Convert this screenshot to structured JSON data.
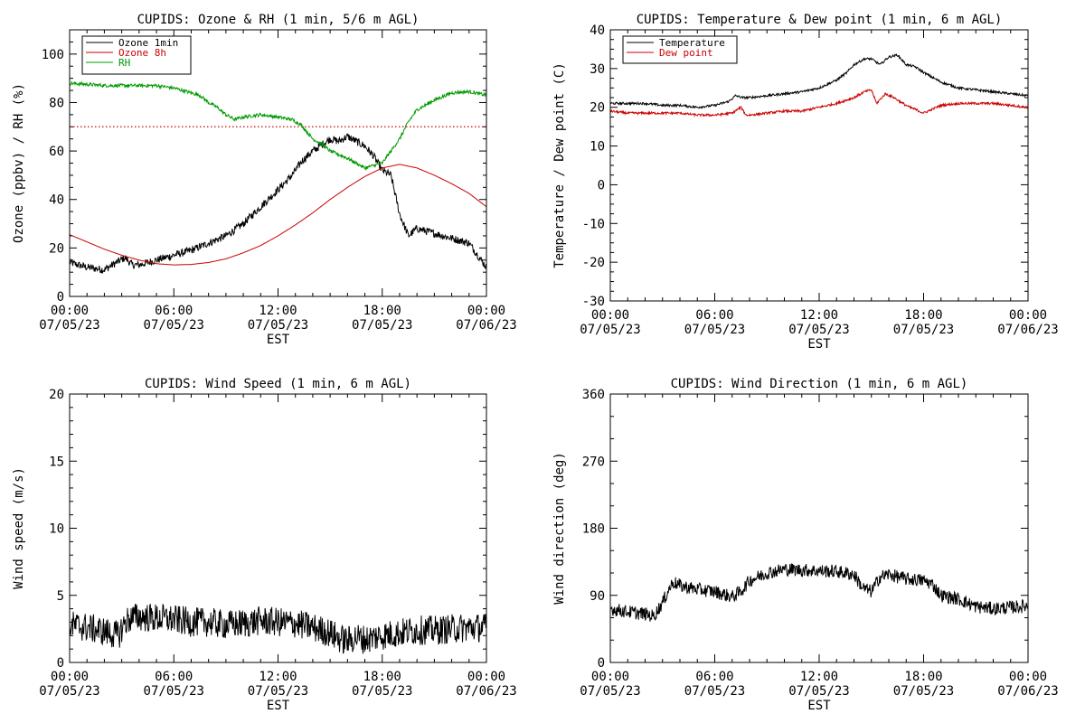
{
  "chart_data": [
    {
      "id": "ozone",
      "type": "line",
      "title": "CUPIDS: Ozone & RH (1 min, 5/6 m AGL)",
      "ylabel": "Ozone (ppbv) / RH (%)",
      "xlabel": "EST",
      "xlim": [
        0,
        24
      ],
      "ylim": [
        0,
        110
      ],
      "yticks": [
        0,
        20,
        40,
        60,
        80,
        100
      ],
      "xticks": [
        0,
        6,
        12,
        18,
        24
      ],
      "xtick_labels": [
        [
          "00:00",
          "07/05/23"
        ],
        [
          "06:00",
          "07/05/23"
        ],
        [
          "12:00",
          "07/05/23"
        ],
        [
          "18:00",
          "07/05/23"
        ],
        [
          "00:00",
          "07/06/23"
        ]
      ],
      "legend_position": "top-left",
      "reference_line": {
        "y": 70,
        "color": "#cc0000",
        "style": "dotted"
      },
      "series": [
        {
          "name": "Ozone 1min",
          "color": "#000000",
          "noise": 1.6,
          "x": [
            0,
            1,
            2,
            2.7,
            3.2,
            3.6,
            4,
            5,
            6,
            7,
            8,
            9,
            10,
            11,
            12,
            12.8,
            13.4,
            14,
            14.6,
            15,
            15.5,
            16,
            16.5,
            17,
            17.5,
            18,
            18.5,
            19,
            19.5,
            20,
            21,
            22,
            23,
            23.6,
            24
          ],
          "y": [
            14,
            12,
            11,
            14,
            16,
            13,
            13,
            15,
            17,
            19,
            22,
            25,
            30,
            37,
            44,
            50,
            56,
            60,
            63,
            65,
            64,
            66,
            64,
            62,
            58,
            52,
            50,
            34,
            25,
            28,
            26,
            24,
            22,
            16,
            12
          ]
        },
        {
          "name": "Ozone 8h",
          "color": "#cc0000",
          "noise": 0,
          "x": [
            0,
            1,
            2,
            3,
            4,
            5,
            6,
            7,
            8,
            9,
            10,
            11,
            12,
            13,
            14,
            15,
            16,
            17,
            18,
            19,
            20,
            21,
            22,
            23,
            24
          ],
          "y": [
            25.5,
            22.5,
            19.5,
            17,
            15,
            13.5,
            13,
            13.2,
            14,
            15.5,
            18,
            21,
            25,
            29.5,
            34.5,
            40,
            45,
            49.5,
            53,
            54.5,
            53,
            50,
            46.5,
            42.5,
            37
          ]
        },
        {
          "name": "RH",
          "color": "#009900",
          "noise": 0.7,
          "x": [
            0,
            1,
            2,
            3,
            4,
            5,
            6,
            7,
            7.5,
            8,
            8.5,
            9,
            9.5,
            10,
            11,
            12,
            12.8,
            13.3,
            14,
            14.5,
            15,
            16,
            16.5,
            17,
            17.5,
            18,
            18.5,
            19,
            19.5,
            20,
            21,
            22,
            23,
            24
          ],
          "y": [
            88,
            87.5,
            87,
            87,
            87,
            87,
            86,
            84,
            83,
            80,
            78,
            75,
            73,
            74,
            75,
            74,
            73,
            71,
            65,
            63,
            60,
            57,
            55,
            53,
            54,
            55,
            60,
            65,
            72,
            77,
            81,
            84,
            84.5,
            83
          ]
        }
      ]
    },
    {
      "id": "temp",
      "type": "line",
      "title": "CUPIDS: Temperature & Dew point (1 min, 6 m AGL)",
      "ylabel": "Temperature / Dew point (C)",
      "xlabel": "EST",
      "xlim": [
        0,
        24
      ],
      "ylim": [
        -30,
        40
      ],
      "yticks": [
        -30,
        -20,
        -10,
        0,
        10,
        20,
        30,
        40
      ],
      "xticks": [
        0,
        6,
        12,
        18,
        24
      ],
      "xtick_labels": [
        [
          "00:00",
          "07/05/23"
        ],
        [
          "06:00",
          "07/05/23"
        ],
        [
          "12:00",
          "07/05/23"
        ],
        [
          "18:00",
          "07/05/23"
        ],
        [
          "00:00",
          "07/06/23"
        ]
      ],
      "legend_position": "top-left",
      "series": [
        {
          "name": "Temperature",
          "color": "#000000",
          "noise": 0.3,
          "x": [
            0,
            1,
            2,
            3,
            4,
            5,
            6,
            6.8,
            7.2,
            7.6,
            8,
            9,
            10,
            11,
            12,
            13,
            13.6,
            14,
            14.6,
            15,
            15.5,
            16,
            16.5,
            17,
            17.5,
            18,
            19,
            20,
            21,
            22,
            23,
            24
          ],
          "y": [
            21,
            21,
            21,
            20.5,
            20.5,
            20,
            20.5,
            21.5,
            23,
            22.5,
            22.5,
            23,
            23.5,
            24,
            25,
            27,
            29,
            31,
            32.5,
            32.5,
            31,
            33,
            33.5,
            31,
            30.5,
            29,
            26.5,
            25,
            24.5,
            24,
            23.5,
            23
          ]
        },
        {
          "name": "Dew point",
          "color": "#cc0000",
          "noise": 0.3,
          "x": [
            0,
            1,
            2,
            3,
            4,
            5,
            6,
            7,
            7.5,
            7.8,
            8,
            9,
            10,
            11,
            12,
            13,
            14,
            14.6,
            15,
            15.3,
            15.8,
            16.3,
            16.8,
            17.2,
            17.5,
            18,
            19,
            20,
            21,
            22,
            23,
            24
          ],
          "y": [
            19,
            18.5,
            18.5,
            18.5,
            18.5,
            18,
            18,
            18.5,
            20,
            18,
            18,
            18.5,
            19,
            19,
            20,
            21,
            22.5,
            24,
            24.5,
            21,
            23.5,
            22.5,
            21,
            20,
            19.5,
            18.5,
            20.5,
            21,
            21,
            21,
            20.5,
            20
          ]
        }
      ]
    },
    {
      "id": "wspd",
      "type": "line",
      "title": "CUPIDS: Wind Speed (1 min, 6 m AGL)",
      "ylabel": "Wind speed (m/s)",
      "xlabel": "EST",
      "xlim": [
        0,
        24
      ],
      "ylim": [
        0,
        20
      ],
      "yticks": [
        0,
        5,
        10,
        15,
        20
      ],
      "xticks": [
        0,
        6,
        12,
        18,
        24
      ],
      "xtick_labels": [
        [
          "00:00",
          "07/05/23"
        ],
        [
          "06:00",
          "07/05/23"
        ],
        [
          "12:00",
          "07/05/23"
        ],
        [
          "18:00",
          "07/05/23"
        ],
        [
          "00:00",
          "07/06/23"
        ]
      ],
      "series": [
        {
          "name": "",
          "color": "#000000",
          "noise": 1.1,
          "x": [
            0,
            1,
            2,
            2.8,
            3.2,
            3.5,
            4,
            5,
            6,
            7,
            8,
            9,
            10,
            11,
            12,
            13,
            14,
            14.5,
            15,
            15.5,
            16,
            16.5,
            17,
            18,
            19,
            20,
            21,
            22,
            23,
            24
          ],
          "y": [
            2.8,
            2.6,
            2.3,
            2.0,
            3.0,
            3.3,
            3.4,
            3.3,
            3.2,
            3.0,
            3.0,
            2.8,
            2.9,
            3.1,
            3.0,
            2.9,
            2.6,
            2.4,
            2.2,
            1.8,
            1.6,
            1.9,
            1.7,
            2.0,
            2.2,
            2.4,
            2.4,
            2.5,
            2.6,
            2.6
          ]
        }
      ]
    },
    {
      "id": "wdir",
      "type": "line",
      "title": "CUPIDS: Wind Direction (1 min, 6 m AGL)",
      "ylabel": "Wind direction (deg)",
      "xlabel": "EST",
      "xlim": [
        0,
        24
      ],
      "ylim": [
        0,
        360
      ],
      "yticks": [
        0,
        90,
        180,
        270,
        360
      ],
      "xticks": [
        0,
        6,
        12,
        18,
        24
      ],
      "xtick_labels": [
        [
          "00:00",
          "07/05/23"
        ],
        [
          "06:00",
          "07/05/23"
        ],
        [
          "12:00",
          "07/05/23"
        ],
        [
          "18:00",
          "07/05/23"
        ],
        [
          "00:00",
          "07/06/23"
        ]
      ],
      "series": [
        {
          "name": "",
          "color": "#000000",
          "noise": 9,
          "x": [
            0,
            1,
            2,
            2.5,
            3,
            3.3,
            3.6,
            4,
            5,
            6,
            7,
            7.5,
            8,
            8.5,
            9,
            10,
            11,
            12,
            13,
            14,
            14.5,
            15,
            15.5,
            16,
            17,
            18,
            18.5,
            19,
            20,
            21,
            22,
            23,
            24
          ],
          "y": [
            72,
            68,
            65,
            62,
            80,
            95,
            108,
            103,
            98,
            95,
            88,
            95,
            110,
            115,
            120,
            125,
            124,
            123,
            122,
            118,
            100,
            95,
            115,
            118,
            112,
            110,
            105,
            90,
            85,
            75,
            72,
            74,
            76
          ]
        }
      ]
    }
  ]
}
